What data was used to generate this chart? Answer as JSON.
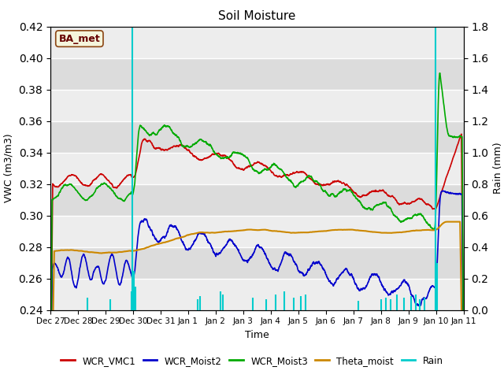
{
  "title": "Soil Moisture",
  "xlabel": "Time",
  "ylabel_left": "VWC (m3/m3)",
  "ylabel_right": "Rain (mm)",
  "ylim_left": [
    0.24,
    0.42
  ],
  "ylim_right": [
    0.0,
    1.8
  ],
  "yticks_left": [
    0.24,
    0.26,
    0.28,
    0.3,
    0.32,
    0.34,
    0.36,
    0.38,
    0.4,
    0.42
  ],
  "yticks_right": [
    0.0,
    0.2,
    0.4,
    0.6,
    0.8,
    1.0,
    1.2,
    1.4,
    1.6,
    1.8
  ],
  "bg_color": "#dcdcdc",
  "station_label": "BA_met",
  "colors": {
    "WCR_VMC1": "#cc0000",
    "WCR_Moist2": "#0000cc",
    "WCR_Moist3": "#00aa00",
    "Theta_moist": "#cc8800",
    "Rain": "#00cccc"
  },
  "xtick_labels": [
    "Dec 27",
    "Dec 28",
    "Dec 29",
    "Dec 30",
    "Dec 31",
    "Jan 1",
    "Jan 2",
    "Jan 3",
    "Jan 4",
    "Jan 5",
    "Jan 6",
    "Jan 7",
    "Jan 8",
    "Jan 9",
    "Jan 10",
    "Jan 11"
  ]
}
